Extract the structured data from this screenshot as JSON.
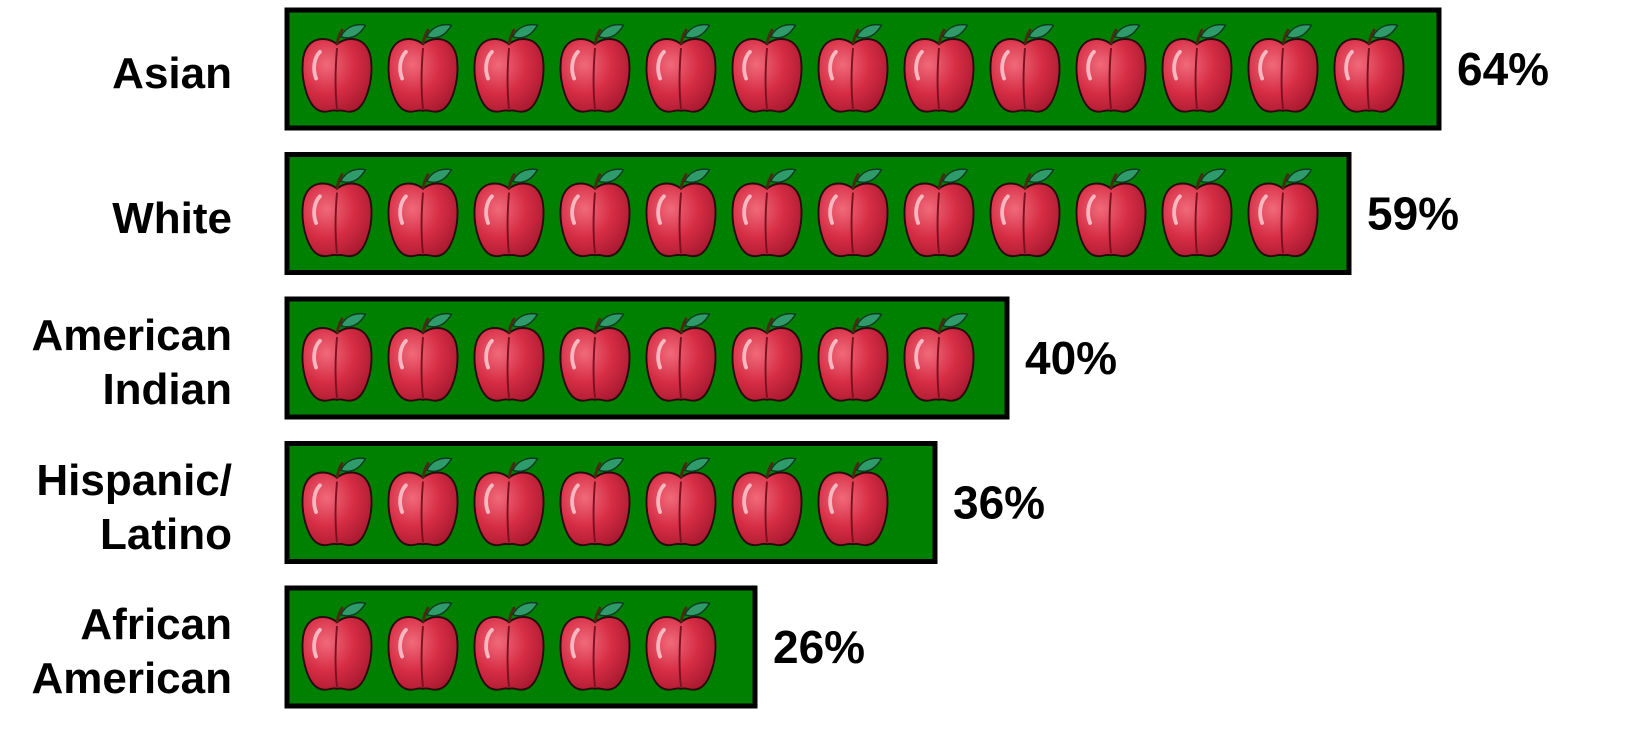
{
  "chart_data": {
    "type": "bar",
    "orientation": "horizontal",
    "categories": [
      "Asian",
      "White",
      "American Indian",
      "Hispanic/ Latino",
      "African American"
    ],
    "values": [
      64,
      59,
      40,
      36,
      26
    ],
    "value_labels": [
      "64%",
      "59%",
      "40%",
      "36%",
      "26%"
    ],
    "color": "#008000"
  }
}
